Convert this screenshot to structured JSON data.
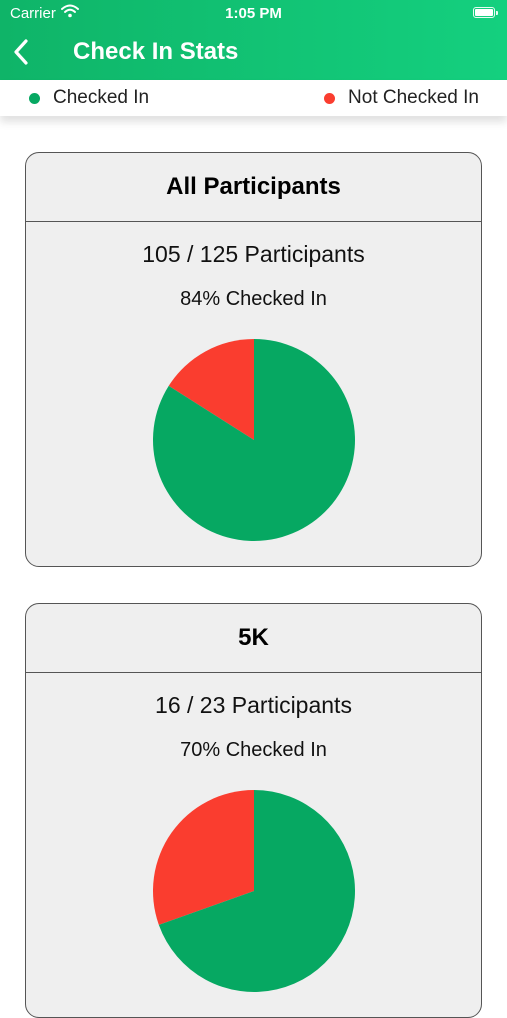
{
  "status": {
    "carrier": "Carrier",
    "time": "1:05 PM"
  },
  "nav": {
    "title": "Check In Stats"
  },
  "legend": {
    "checked_in": "Checked In",
    "not_checked_in": "Not Checked In"
  },
  "colors": {
    "checked_in": "#06a862",
    "not_checked_in": "#fa3d2f",
    "header": "#12c274"
  },
  "cards": [
    {
      "title": "All Participants",
      "participants": "105 / 125 Participants",
      "percent_text": "84% Checked In",
      "checked_fraction": 0.84
    },
    {
      "title": "5K",
      "participants": "16 / 23 Participants",
      "percent_text": "70% Checked In",
      "checked_fraction": 0.7
    }
  ],
  "chart_data": [
    {
      "type": "pie",
      "title": "All Participants",
      "labels": [
        "Checked In",
        "Not Checked In"
      ],
      "values": [
        105,
        20
      ],
      "legend": "top"
    },
    {
      "type": "pie",
      "title": "5K",
      "labels": [
        "Checked In",
        "Not Checked In"
      ],
      "values": [
        16,
        7
      ],
      "legend": "top"
    }
  ]
}
